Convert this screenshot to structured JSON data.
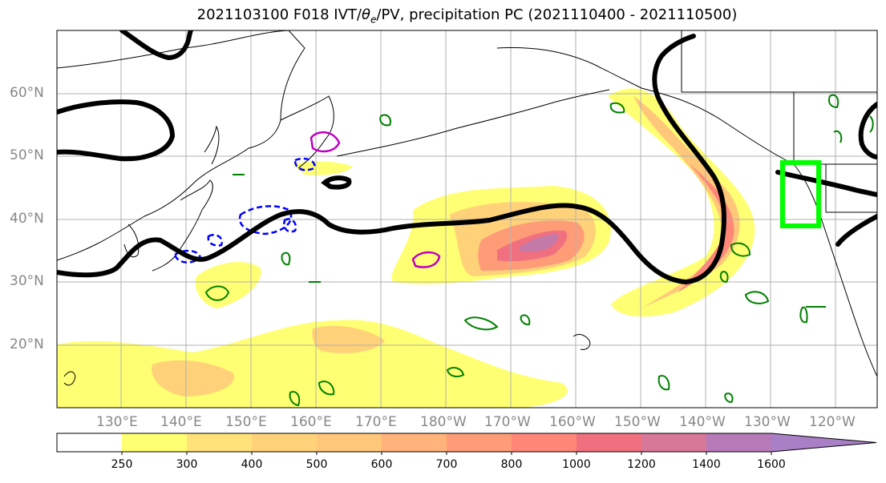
{
  "title": "2021103100 F018 IVT/θe/PV, precipitation PC (2021110400 - 2021110500)",
  "title_parts": {
    "pre": "2021103100 F018 IVT/",
    "theta": "θ",
    "sub": "e",
    "post": "/PV, precipitation PC (2021110400 - 2021110500)"
  },
  "lat_labels": [
    "60°N",
    "50°N",
    "40°N",
    "30°N",
    "20°N"
  ],
  "lon_labels": [
    "130°E",
    "140°E",
    "150°E",
    "160°E",
    "170°E",
    "180°W",
    "170°W",
    "160°W",
    "150°W",
    "140°W",
    "130°W",
    "120°W"
  ],
  "colorbar": {
    "ticks": [
      "250",
      "300",
      "400",
      "500",
      "600",
      "700",
      "800",
      "1000",
      "1200",
      "1400",
      "1600"
    ],
    "colors": [
      "#ffffff",
      "#ffff73",
      "#ffe27a",
      "#ffd27a",
      "#ffc77a",
      "#ffb27a",
      "#ff9c78",
      "#ff8778",
      "#f07080",
      "#d77898",
      "#b77ab8",
      "#a97fc6"
    ]
  },
  "colors": {
    "ivt_contour": "#000000",
    "pv_contour": "#008000",
    "theta_contour": "#0000ff",
    "theta_contour_2": "#c000c0",
    "target_box": "#00ff00",
    "grid": "#b0b0b0",
    "coastline": "#000000"
  }
}
